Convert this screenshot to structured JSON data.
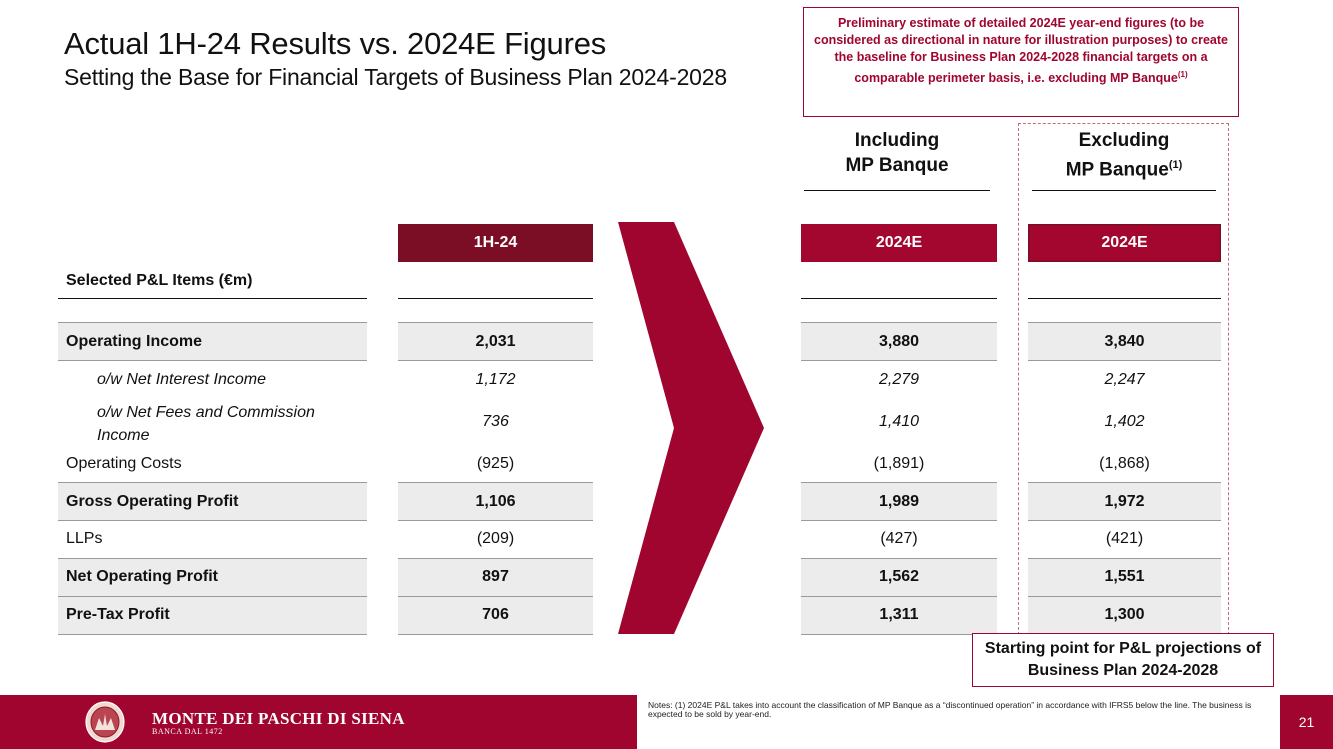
{
  "header": {
    "title": "Actual 1H-24 Results vs. 2024E Figures",
    "subtitle": "Setting the Base for Financial Targets of Business Plan 2024-2028"
  },
  "callout": {
    "text": "Preliminary estimate of detailed 2024E year-end figures (to be considered as directional in nature for illustration purposes) to create the baseline for Business Plan 2024-2028 financial targets on a comparable perimeter basis, i.e. excluding MP Banque",
    "footnote_ref": "(1)"
  },
  "groups": {
    "including": {
      "line1": "Including",
      "line2": "MP Banque"
    },
    "excluding": {
      "line1": "Excluding",
      "line2": "MP Banque",
      "footnote_ref": "(1)"
    }
  },
  "columns": {
    "actual": "1H-24",
    "incl": "2024E",
    "excl": "2024E"
  },
  "table": {
    "section_label": "Selected P&L Items (€m)",
    "rows": [
      {
        "label": "Operating Income",
        "v1": "2,031",
        "v2": "3,880",
        "v3": "3,840"
      },
      {
        "label": "o/w Net Interest Income",
        "v1": "1,172",
        "v2": "2,279",
        "v3": "2,247"
      },
      {
        "label": "o/w Net Fees and Commission Income",
        "v1": "736",
        "v2": "1,410",
        "v3": "1,402"
      },
      {
        "label": "Operating Costs",
        "v1": "(925)",
        "v2": "(1,891)",
        "v3": "(1,868)"
      },
      {
        "label": "Gross Operating Profit",
        "v1": "1,106",
        "v2": "1,989",
        "v3": "1,972"
      },
      {
        "label": "LLPs",
        "v1": "(209)",
        "v2": "(427)",
        "v3": "(421)"
      },
      {
        "label": "Net Operating Profit",
        "v1": "897",
        "v2": "1,562",
        "v3": "1,551"
      },
      {
        "label": "Pre-Tax Profit",
        "v1": "706",
        "v2": "1,311",
        "v3": "1,300"
      }
    ]
  },
  "starting_point": {
    "line1": "Starting point for P&L projections of",
    "line2": "Business Plan 2024-2028"
  },
  "footer": {
    "brand": "MONTE DEI PASCHI DI SIENA",
    "brand_sub": "BANCA DAL 1472",
    "note": "Notes: (1) 2024E P&L takes into account the classification of MP Banque as a “discontinued operation” in accordance with IFRS5 below the line. The business is expected to be sold by year-end.",
    "page": "21"
  },
  "colors": {
    "brand_red": "#a0052f",
    "dark_red": "#7b0d25"
  },
  "icons": [
    "chevron-right-icon",
    "bank-seal-logo"
  ]
}
